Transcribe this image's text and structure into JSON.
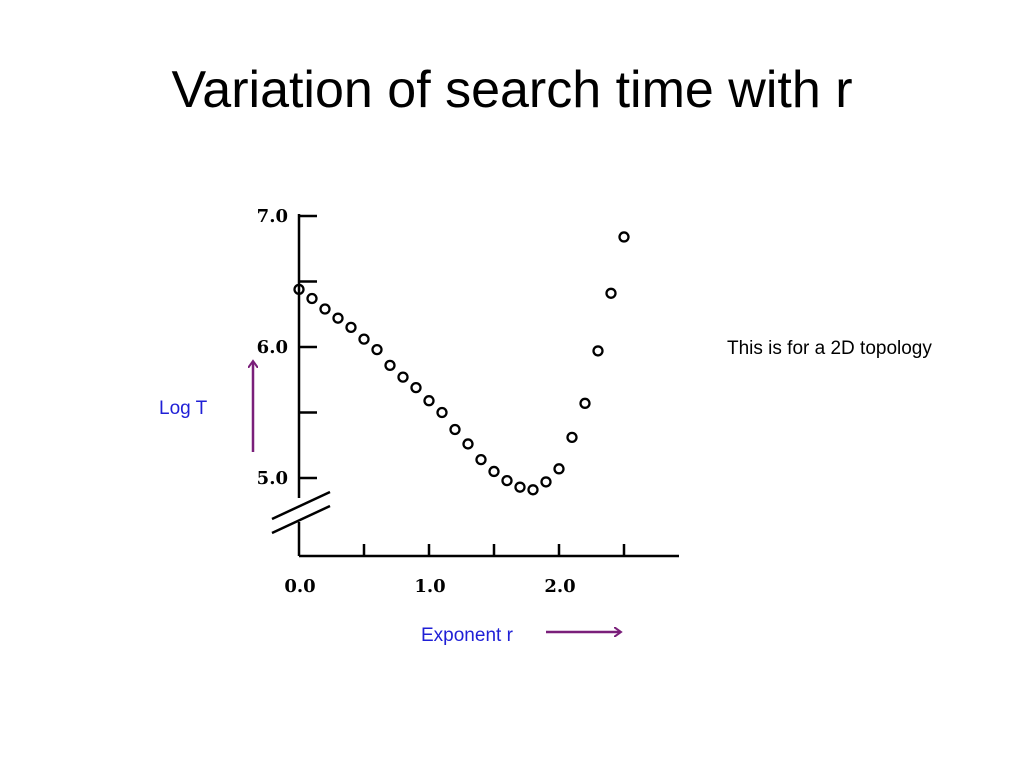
{
  "slide": {
    "title": "Variation of search time with r",
    "note": "This is for a 2D topology"
  },
  "colors": {
    "annotation_text": "#1f1fd6",
    "arrow": "#7a1f7a",
    "axis": "#000000"
  },
  "chart_data": {
    "type": "scatter",
    "title": "",
    "xlabel": "Exponent r",
    "ylabel": "Log T",
    "xlim": [
      0.0,
      2.8
    ],
    "ylim": [
      5.0,
      7.0
    ],
    "x_tick_values": [
      0.0,
      0.5,
      1.0,
      1.5,
      2.0,
      2.5
    ],
    "x_tick_labels": [
      {
        "value": 0.0,
        "text": "0.0"
      },
      {
        "value": 1.0,
        "text": "1.0"
      },
      {
        "value": 2.0,
        "text": "2.0"
      }
    ],
    "y_tick_values": [
      5.0,
      5.5,
      6.0,
      6.5,
      7.0
    ],
    "y_tick_labels": [
      {
        "value": 5.0,
        "text": "5.0"
      },
      {
        "value": 6.0,
        "text": "6.0"
      },
      {
        "value": 7.0,
        "text": "7.0"
      }
    ],
    "y_axis_break": true,
    "grid": false,
    "marker": "open-circle",
    "series": [
      {
        "x": [
          0.0,
          0.1,
          0.2,
          0.3,
          0.4,
          0.5,
          0.6,
          0.7,
          0.8,
          0.9,
          1.0,
          1.1,
          1.2,
          1.3,
          1.4,
          1.5,
          1.6,
          1.7,
          1.8,
          1.9,
          2.0,
          2.1,
          2.2,
          2.3,
          2.4,
          2.5
        ],
        "y": [
          6.44,
          6.37,
          6.29,
          6.22,
          6.15,
          6.06,
          5.98,
          5.86,
          5.77,
          5.69,
          5.59,
          5.5,
          5.37,
          5.26,
          5.14,
          5.05,
          4.98,
          4.93,
          4.91,
          4.97,
          5.07,
          5.31,
          5.57,
          5.97,
          6.41,
          6.84
        ]
      }
    ]
  }
}
